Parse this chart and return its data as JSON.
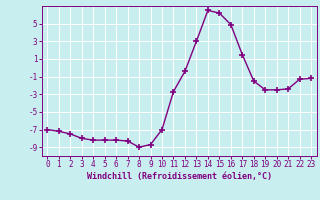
{
  "x": [
    0,
    1,
    2,
    3,
    4,
    5,
    6,
    7,
    8,
    9,
    10,
    11,
    12,
    13,
    14,
    15,
    16,
    17,
    18,
    19,
    20,
    21,
    22,
    23
  ],
  "y": [
    -7.0,
    -7.2,
    -7.5,
    -8.0,
    -8.2,
    -8.2,
    -8.2,
    -8.3,
    -9.0,
    -8.7,
    -7.0,
    -2.7,
    -0.4,
    3.0,
    6.5,
    6.2,
    4.9,
    1.5,
    -1.5,
    -2.5,
    -2.5,
    -2.4,
    -1.3,
    -1.2
  ],
  "line_color": "#800080",
  "marker": "+",
  "marker_size": 4,
  "marker_linewidth": 1.2,
  "line_width": 1.0,
  "bg_color": "#c8eef0",
  "grid_color": "#ffffff",
  "xlabel": "Windchill (Refroidissement éolien,°C)",
  "xlabel_fontsize": 6.0,
  "xlim": [
    -0.5,
    23.5
  ],
  "ylim": [
    -10,
    7
  ],
  "yticks": [
    -9,
    -7,
    -5,
    -3,
    -1,
    1,
    3,
    5
  ],
  "xticks": [
    0,
    1,
    2,
    3,
    4,
    5,
    6,
    7,
    8,
    9,
    10,
    11,
    12,
    13,
    14,
    15,
    16,
    17,
    18,
    19,
    20,
    21,
    22,
    23
  ],
  "tick_fontsize": 5.5,
  "spine_color": "#800080"
}
